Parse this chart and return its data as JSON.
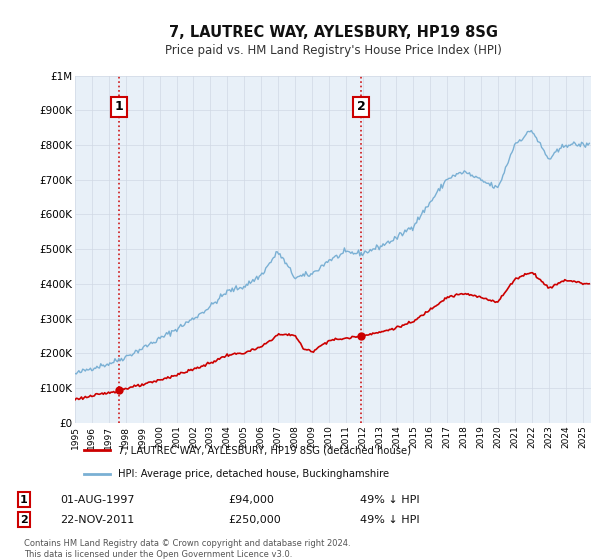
{
  "title": "7, LAUTREC WAY, AYLESBURY, HP19 8SG",
  "subtitle": "Price paid vs. HM Land Registry's House Price Index (HPI)",
  "background_color": "#ffffff",
  "plot_bg_color": "#e8f0f8",
  "grid_color": "#d0d8e4",
  "hpi_color": "#7ab0d4",
  "price_color": "#cc0000",
  "sale1_date": 1997.583,
  "sale1_price": 94000,
  "sale1_label": "1",
  "sale2_date": 2011.9,
  "sale2_price": 250000,
  "sale2_label": "2",
  "ylim": [
    0,
    1000000
  ],
  "xlim_start": 1995.0,
  "xlim_end": 2025.5,
  "legend_line1": "7, LAUTREC WAY, AYLESBURY, HP19 8SG (detached house)",
  "legend_line2": "HPI: Average price, detached house, Buckinghamshire",
  "table_row1_num": "1",
  "table_row1_date": "01-AUG-1997",
  "table_row1_price": "£94,000",
  "table_row1_hpi": "49% ↓ HPI",
  "table_row2_num": "2",
  "table_row2_date": "22-NOV-2011",
  "table_row2_price": "£250,000",
  "table_row2_hpi": "49% ↓ HPI",
  "footnote1": "Contains HM Land Registry data © Crown copyright and database right 2024.",
  "footnote2": "This data is licensed under the Open Government Licence v3.0.",
  "yticks": [
    0,
    100000,
    200000,
    300000,
    400000,
    500000,
    600000,
    700000,
    800000,
    900000,
    1000000
  ],
  "ytick_labels": [
    "£0",
    "£100K",
    "£200K",
    "£300K",
    "£400K",
    "£500K",
    "£600K",
    "£700K",
    "£800K",
    "£900K",
    "£1M"
  ]
}
